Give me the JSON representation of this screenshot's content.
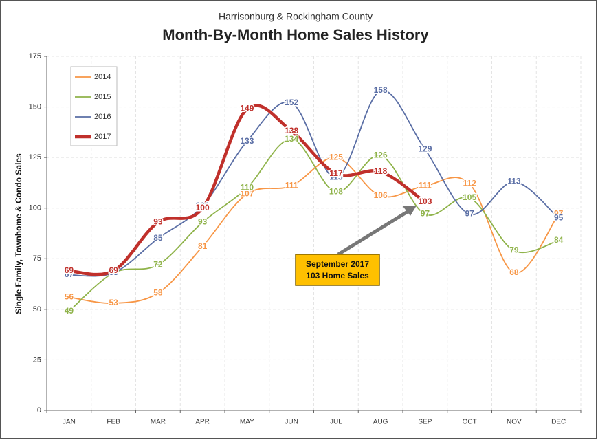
{
  "chart_data": {
    "type": "line",
    "subtitle": "Harrisonburg & Rockingham County",
    "title": "Month-By-Month Home Sales History",
    "y_label": "Single Family, Townhome & Condo Sales",
    "categories": [
      "JAN",
      "FEB",
      "MAR",
      "APR",
      "MAY",
      "JUN",
      "JUL",
      "AUG",
      "SEP",
      "OCT",
      "NOV",
      "DEC"
    ],
    "series": [
      {
        "name": "2014",
        "color": "#f79646",
        "values": [
          56,
          53,
          58,
          81,
          107,
          111,
          125,
          106,
          111,
          112,
          68,
          97
        ]
      },
      {
        "name": "2015",
        "color": "#8fb34a",
        "values": [
          49,
          68,
          72,
          93,
          110,
          134,
          108,
          126,
          97,
          105,
          79,
          84
        ]
      },
      {
        "name": "2016",
        "color": "#5a6ea5",
        "values": [
          67,
          68,
          85,
          101,
          133,
          152,
          115,
          158,
          129,
          97,
          113,
          95
        ]
      },
      {
        "name": "2017",
        "color": "#c0302b",
        "values": [
          69,
          69,
          93,
          100,
          149,
          138,
          117,
          118,
          103,
          null,
          null,
          null
        ]
      }
    ],
    "ylim": [
      0,
      175
    ],
    "yticks": [
      0,
      25,
      50,
      75,
      100,
      125,
      150,
      175
    ],
    "grid": true,
    "legend": "top-left",
    "annotation": [
      "September 2017",
      "103 Home Sales"
    ]
  }
}
